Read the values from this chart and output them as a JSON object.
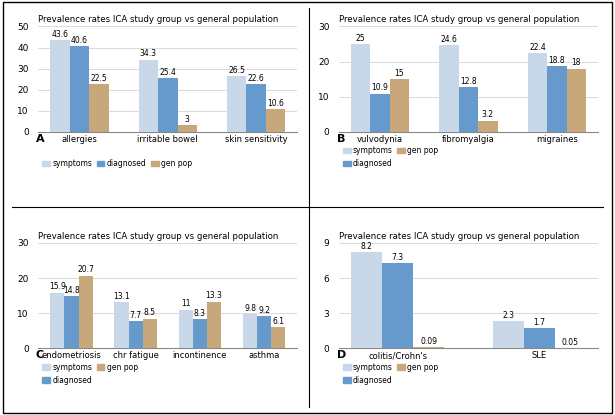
{
  "title": "Prevalence rates ICA study group vs general population",
  "color_symptoms": "#c8d8e8",
  "color_diagnosed": "#6699cc",
  "color_genpop": "#c8a87a",
  "panels": {
    "A": {
      "categories": [
        "allergies",
        "irritable bowel",
        "skin sensitivity"
      ],
      "symptoms": [
        43.6,
        34.3,
        26.5
      ],
      "diagnosed": [
        40.6,
        25.4,
        22.6
      ],
      "genpop": [
        22.5,
        3.0,
        10.6
      ],
      "genpop_labels": [
        "22.5",
        "3",
        "10.6"
      ],
      "ylim": [
        0,
        50
      ],
      "yticks": [
        0,
        10,
        20,
        30,
        40,
        50
      ],
      "legend_ncol": 3,
      "label": "A"
    },
    "B": {
      "categories": [
        "vulvodynia",
        "fibromyalgia",
        "migraines"
      ],
      "symptoms": [
        25.0,
        24.6,
        22.4
      ],
      "diagnosed": [
        10.9,
        12.8,
        18.8
      ],
      "genpop": [
        15.0,
        3.2,
        18.0
      ],
      "genpop_labels": [
        "15",
        "3.2",
        "18"
      ],
      "ylim": [
        0,
        30
      ],
      "yticks": [
        0,
        10,
        20,
        30
      ],
      "legend_ncol": 2,
      "label": "B"
    },
    "C": {
      "categories": [
        "endometriosis",
        "chr fatigue",
        "incontinence",
        "asthma"
      ],
      "symptoms": [
        15.9,
        13.1,
        11.0,
        9.8
      ],
      "diagnosed": [
        14.8,
        7.7,
        8.3,
        9.2
      ],
      "genpop": [
        20.7,
        8.5,
        13.3,
        6.1
      ],
      "genpop_labels": [
        "20.7",
        "8.5",
        "13.3",
        "6.1"
      ],
      "ylim": [
        0,
        30
      ],
      "yticks": [
        0,
        10,
        20,
        30
      ],
      "legend_ncol": 2,
      "label": "C"
    },
    "D": {
      "categories": [
        "colitis/Crohn's",
        "SLE"
      ],
      "symptoms": [
        8.2,
        2.3
      ],
      "diagnosed": [
        7.3,
        1.7
      ],
      "genpop": [
        0.09,
        0.05
      ],
      "genpop_labels": [
        "0.09",
        "0.05"
      ],
      "ylim": [
        0,
        9
      ],
      "yticks": [
        0,
        3,
        6,
        9
      ],
      "legend_ncol": 2,
      "label": "D"
    }
  },
  "syms_labels": {
    "A": [
      "43.6",
      "34.3",
      "26.5"
    ],
    "B": [
      "25",
      "24.6",
      "22.4"
    ],
    "C": [
      "15.9",
      "13.1",
      "11",
      "9.8"
    ],
    "D": [
      "8.2",
      "2.3"
    ]
  },
  "diag_labels": {
    "A": [
      "40.6",
      "25.4",
      "22.6"
    ],
    "B": [
      "10.9",
      "12.8",
      "18.8"
    ],
    "C": [
      "14.8",
      "7.7",
      "8.3",
      "9.2"
    ],
    "D": [
      "7.3",
      "1.7"
    ]
  }
}
